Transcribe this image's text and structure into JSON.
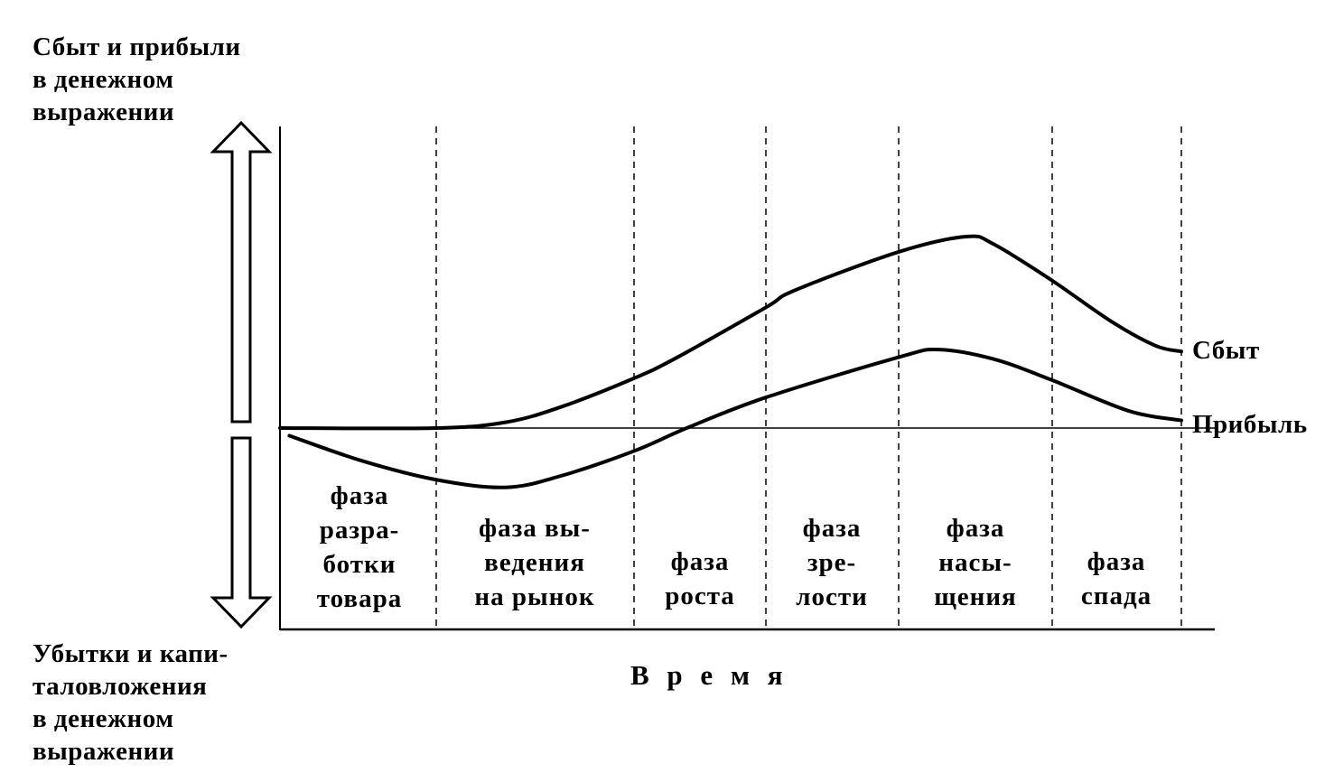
{
  "chart_data": {
    "type": "line",
    "title": "",
    "ylabel_top": "Сбыт и прибыли\nв денежном\nвыражении",
    "ylabel_bottom": "Убытки и капи-\nталовложения\nв денежном\nвыражении",
    "xlabel": "В р е м я",
    "phases": [
      "фаза\nразра-\nботки\nтовара",
      "фаза вы-\nведения\nна рынок",
      "фаза\nроста",
      "фаза\nзре-\nлости",
      "фаза\nнасы-\nщения",
      "фаза\nспада"
    ],
    "series": [
      {
        "name": "Сбыт",
        "points": [
          [
            0,
            0
          ],
          [
            1,
            0
          ],
          [
            1.35,
            3
          ],
          [
            1.63,
            11
          ],
          [
            2,
            26
          ],
          [
            2.33,
            37
          ],
          [
            3,
            63
          ],
          [
            3.22,
            72
          ],
          [
            4,
            92
          ],
          [
            4.44,
            100
          ],
          [
            4.62,
            96
          ],
          [
            5,
            77
          ],
          [
            5.45,
            56
          ],
          [
            5.8,
            43
          ],
          [
            6,
            40
          ]
        ]
      },
      {
        "name": "Прибыль",
        "points": [
          [
            0.06,
            -4
          ],
          [
            0.52,
            -17
          ],
          [
            1,
            -27
          ],
          [
            1.35,
            -31
          ],
          [
            1.63,
            -25
          ],
          [
            2,
            -12
          ],
          [
            2.4,
            0
          ],
          [
            3,
            16
          ],
          [
            4,
            37
          ],
          [
            4.26,
            41
          ],
          [
            4.62,
            36
          ],
          [
            5,
            25
          ],
          [
            5.59,
            9
          ],
          [
            6,
            4
          ]
        ]
      }
    ],
    "grid": "dashed vertical phase separators",
    "legend": "labels at right end of lines"
  }
}
